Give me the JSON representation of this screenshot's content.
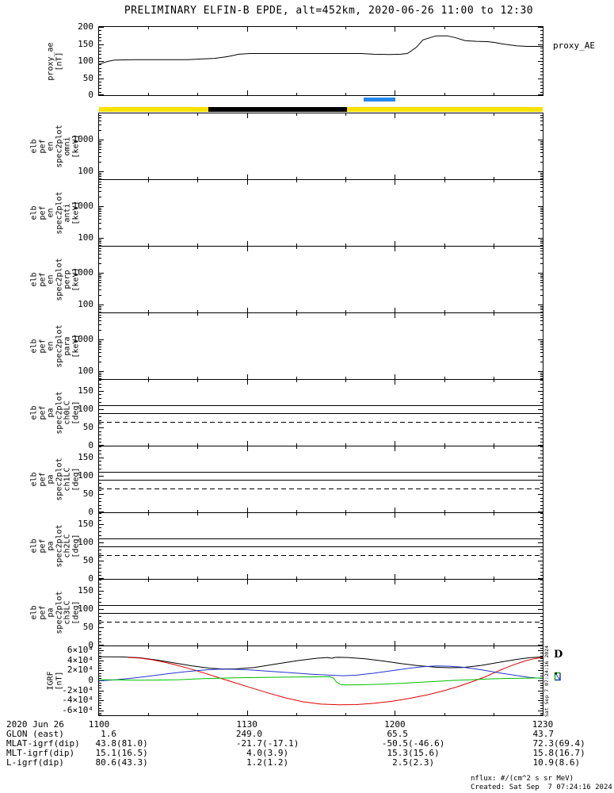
{
  "title": "PRELIMINARY ELFIN-B EPDE, alt=452km, 2020-06-26 11:00 to 12:30",
  "notes": {
    "nflux": "nflux: #/(cm^2 s sr MeV)",
    "created": "Created: Sat Sep  7 07:24:16 2024",
    "side_timestamp": "Sat Sep  7 07:24:16 2024"
  },
  "colors": {
    "background": "#ffffff",
    "axis": "#000000",
    "epoch_yellow": "#ffe100",
    "epoch_black": "#000000",
    "science_blue": "#2288ee",
    "igrf_black": "#000000",
    "igrf_red": "#dd0000",
    "igrf_green": "#00c000",
    "igrf_blue": "#2233cc"
  },
  "bars": {
    "science_zone": {
      "color_key": "science_blue",
      "start": 0.596,
      "end": 0.667
    },
    "epoch": [
      {
        "color_key": "epoch_yellow",
        "start": 0.0,
        "end": 0.247
      },
      {
        "color_key": "epoch_black",
        "start": 0.247,
        "end": 0.559
      },
      {
        "color_key": "epoch_yellow",
        "start": 0.559,
        "end": 1.0
      }
    ]
  },
  "igrf_legend": {
    "d_label": "D"
  },
  "bottom": {
    "date_label": "2020 Jun 26",
    "time_ticks": [
      "1100",
      "1130",
      "1200",
      "1230"
    ],
    "rows": [
      {
        "label": "GLON (east)",
        "values": [
          "1.6",
          "249.0",
          "65.5",
          "43.7"
        ]
      },
      {
        "label": "MLAT-igrf(dip)",
        "values": [
          "43.8(81.0)",
          "-21.7(-17.1)",
          "-50.5(-46.6)",
          "72.3(69.4)"
        ]
      },
      {
        "label": "MLT-igrf(dip)",
        "values": [
          "15.1(16.5)",
          "4.0(3.9)",
          "15.3(15.6)",
          "15.8(16.7)"
        ]
      },
      {
        "label": "L-igrf(dip)",
        "values": [
          "80.6(43.3)",
          "1.2(1.2)",
          "2.5(2.3)",
          "10.9(8.6)"
        ]
      }
    ]
  },
  "chart_data": [
    {
      "id": "proxy_ae",
      "type": "line",
      "ylabel_lines": [
        "proxy_ae",
        "[nT]"
      ],
      "right_label": "proxy_AE",
      "ylim": [
        0,
        200
      ],
      "yminor_step": 10,
      "yticks": [
        {
          "v": 200,
          "label": "200"
        },
        {
          "v": 150,
          "label": "150"
        },
        {
          "v": 100,
          "label": "100"
        },
        {
          "v": 50,
          "label": "50"
        },
        {
          "v": 0,
          "label": "0"
        }
      ],
      "xlim_hhmm": [
        "1100",
        "1230"
      ],
      "series": [
        {
          "name": "proxy_AE",
          "color_key": "igrf_black",
          "x": [
            0,
            0.02,
            0.035,
            0.08,
            0.15,
            0.2,
            0.23,
            0.26,
            0.29,
            0.315,
            0.34,
            0.45,
            0.55,
            0.59,
            0.62,
            0.655,
            0.68,
            0.695,
            0.715,
            0.73,
            0.76,
            0.785,
            0.805,
            0.825,
            0.85,
            0.875,
            0.89,
            0.91,
            0.94,
            0.965,
            1
          ],
          "y": [
            91,
            99,
            103,
            104,
            104,
            104,
            106,
            108,
            113,
            120,
            122,
            122,
            122,
            122,
            120,
            119,
            120,
            122,
            140,
            162,
            174,
            174,
            168,
            160,
            158,
            157,
            155,
            150,
            145,
            143,
            143
          ]
        }
      ]
    },
    {
      "id": "en_omni",
      "type": "spec",
      "ylabel_lines": [
        "elb",
        "pef",
        "en",
        "spec2plot",
        "omni",
        "[keV]"
      ],
      "yscale": "log",
      "ylim": [
        55,
        6800
      ],
      "yticks": [
        {
          "v": 1000,
          "label": "1000"
        },
        {
          "v": 100,
          "label": "100"
        }
      ],
      "series": []
    },
    {
      "id": "en_anti",
      "type": "spec",
      "ylabel_lines": [
        "elb",
        "pef",
        "en",
        "spec2plot",
        "anti",
        "[keV]"
      ],
      "yscale": "log",
      "ylim": [
        55,
        6800
      ],
      "yticks": [
        {
          "v": 1000,
          "label": "1000"
        },
        {
          "v": 100,
          "label": "100"
        }
      ],
      "series": []
    },
    {
      "id": "en_perp",
      "type": "spec",
      "ylabel_lines": [
        "elb",
        "pef",
        "en",
        "spec2plot",
        "perp",
        "[keV]"
      ],
      "yscale": "log",
      "ylim": [
        55,
        6800
      ],
      "yticks": [
        {
          "v": 1000,
          "label": "1000"
        },
        {
          "v": 100,
          "label": "100"
        }
      ],
      "series": []
    },
    {
      "id": "en_para",
      "type": "spec",
      "ylabel_lines": [
        "elb",
        "pef",
        "en",
        "spec2plot",
        "para",
        "[keV]"
      ],
      "yscale": "log",
      "ylim": [
        55,
        6800
      ],
      "yticks": [
        {
          "v": 1000,
          "label": "1000"
        },
        {
          "v": 100,
          "label": "100"
        }
      ],
      "series": []
    },
    {
      "id": "pa_ch0",
      "type": "pa",
      "ylabel_lines": [
        "elb",
        "pef",
        "pa",
        "spec2plot",
        "ch0LC",
        "[deg]"
      ],
      "ylim": [
        0,
        180
      ],
      "yminor_step": 10,
      "yticks": [
        {
          "v": 150,
          "label": "150"
        },
        {
          "v": 100,
          "label": "100"
        },
        {
          "v": 50,
          "label": "50"
        },
        {
          "v": 0,
          "label": "0"
        }
      ],
      "hlines": [
        {
          "v": 111,
          "style": "solid"
        },
        {
          "v": 88,
          "style": "solid"
        },
        {
          "v": 64,
          "style": "dashed"
        }
      ]
    },
    {
      "id": "pa_ch1",
      "type": "pa",
      "ylabel_lines": [
        "elb",
        "pef",
        "pa",
        "spec2plot",
        "ch1LC",
        "[deg]"
      ],
      "ylim": [
        0,
        180
      ],
      "yminor_step": 10,
      "yticks": [
        {
          "v": 150,
          "label": "150"
        },
        {
          "v": 100,
          "label": "100"
        },
        {
          "v": 50,
          "label": "50"
        },
        {
          "v": 0,
          "label": "0"
        }
      ],
      "hlines": [
        {
          "v": 111,
          "style": "solid"
        },
        {
          "v": 88,
          "style": "solid"
        },
        {
          "v": 64,
          "style": "dashed"
        }
      ]
    },
    {
      "id": "pa_ch2",
      "type": "pa",
      "ylabel_lines": [
        "elb",
        "pef",
        "pa",
        "spec2plot",
        "ch2LC",
        "[deg]"
      ],
      "ylim": [
        0,
        180
      ],
      "yminor_step": 10,
      "yticks": [
        {
          "v": 150,
          "label": "150"
        },
        {
          "v": 100,
          "label": "100"
        },
        {
          "v": 50,
          "label": "50"
        },
        {
          "v": 0,
          "label": "0"
        }
      ],
      "hlines": [
        {
          "v": 111,
          "style": "solid"
        },
        {
          "v": 88,
          "style": "solid"
        },
        {
          "v": 64,
          "style": "dashed"
        }
      ]
    },
    {
      "id": "pa_ch3",
      "type": "pa",
      "ylabel_lines": [
        "elb",
        "pef",
        "pa",
        "spec2plot",
        "ch3LC",
        "[deg]"
      ],
      "ylim": [
        0,
        180
      ],
      "yminor_step": 10,
      "yticks": [
        {
          "v": 150,
          "label": "150"
        },
        {
          "v": 100,
          "label": "100"
        },
        {
          "v": 50,
          "label": "50"
        },
        {
          "v": 0,
          "label": "0"
        }
      ],
      "hlines": [
        {
          "v": 111,
          "style": "solid"
        },
        {
          "v": 88,
          "style": "solid"
        },
        {
          "v": 64,
          "style": "dashed"
        }
      ]
    },
    {
      "id": "igrf",
      "type": "line",
      "ylabel_lines": [
        "IGRF",
        "[nT]"
      ],
      "ylim": [
        -70000,
        68500
      ],
      "yminor_step": 5000,
      "yticks": [
        {
          "v": 60000,
          "label": "6×10⁴"
        },
        {
          "v": 40000,
          "label": "4×10⁴"
        },
        {
          "v": 20000,
          "label": "2×10⁴"
        },
        {
          "v": 0,
          "label": "0"
        },
        {
          "v": -20000,
          "label": "-2×10⁴"
        },
        {
          "v": -40000,
          "label": "-4×10⁴"
        },
        {
          "v": -60000,
          "label": "-6×10⁴"
        }
      ],
      "series": [
        {
          "name": "igrf_bt_black",
          "color_key": "igrf_black",
          "x": [
            0,
            0.05,
            0.09,
            0.13,
            0.17,
            0.21,
            0.25,
            0.28,
            0.31,
            0.35,
            0.4,
            0.45,
            0.49,
            0.515,
            0.525,
            0.532,
            0.54,
            0.56,
            0.6,
            0.64,
            0.68,
            0.72,
            0.76,
            0.79,
            0.82,
            0.86,
            0.9,
            0.94,
            0.97,
            1
          ],
          "y": [
            47500,
            47200,
            45500,
            41000,
            35000,
            29000,
            24500,
            23000,
            23300,
            26000,
            33000,
            40000,
            44500,
            46000,
            44500,
            46200,
            46300,
            46000,
            43500,
            39000,
            34000,
            29500,
            26500,
            25500,
            26000,
            30000,
            36000,
            42000,
            45500,
            47200
          ]
        },
        {
          "name": "igrf_red",
          "color_key": "igrf_red",
          "x": [
            0.065,
            0.09,
            0.12,
            0.15,
            0.18,
            0.21,
            0.24,
            0.27,
            0.3,
            0.34,
            0.38,
            0.42,
            0.46,
            0.5,
            0.54,
            0.58,
            0.62,
            0.66,
            0.7,
            0.74,
            0.78,
            0.81,
            0.84,
            0.87,
            0.9,
            0.93,
            0.96,
            0.98,
            1
          ],
          "y": [
            46000,
            45000,
            41500,
            36000,
            29500,
            22000,
            14000,
            5500,
            -3000,
            -14000,
            -25000,
            -35000,
            -43000,
            -47500,
            -49000,
            -48500,
            -46000,
            -42000,
            -36000,
            -29000,
            -20000,
            -12000,
            -3000,
            7000,
            19000,
            30000,
            39000,
            43500,
            46000
          ]
        },
        {
          "name": "igrf_blue",
          "color_key": "igrf_blue",
          "x": [
            0,
            0.04,
            0.08,
            0.12,
            0.16,
            0.2,
            0.24,
            0.27,
            0.3,
            0.34,
            0.38,
            0.43,
            0.48,
            0.52,
            0.55,
            0.58,
            0.62,
            0.66,
            0.7,
            0.73,
            0.76,
            0.79,
            0.82,
            0.85,
            0.88,
            0.91,
            0.94,
            0.97,
            1
          ],
          "y": [
            -1000,
            1500,
            5000,
            9500,
            14000,
            18000,
            21000,
            22500,
            22500,
            21000,
            18500,
            15500,
            12500,
            10500,
            9500,
            10500,
            14500,
            19500,
            24500,
            27500,
            29000,
            28500,
            26500,
            23000,
            18500,
            14000,
            10000,
            6000,
            4000
          ]
        },
        {
          "name": "igrf_green",
          "color_key": "igrf_green",
          "x": [
            0,
            0.04,
            0.09,
            0.14,
            0.18,
            0.22,
            0.27,
            0.32,
            0.37,
            0.42,
            0.47,
            0.5,
            0.52,
            0.528,
            0.535,
            0.545,
            0.56,
            0.6,
            0.64,
            0.68,
            0.72,
            0.76,
            0.8,
            0.84,
            0.88,
            0.92,
            0.96,
            1
          ],
          "y": [
            1500,
            1000,
            500,
            800,
            1500,
            3000,
            4500,
            5500,
            6000,
            6500,
            7000,
            7200,
            7500,
            5000,
            -3000,
            -8500,
            -9000,
            -8500,
            -7500,
            -6000,
            -4000,
            -2000,
            0,
            1500,
            3000,
            4000,
            4500,
            5000
          ]
        }
      ]
    }
  ]
}
